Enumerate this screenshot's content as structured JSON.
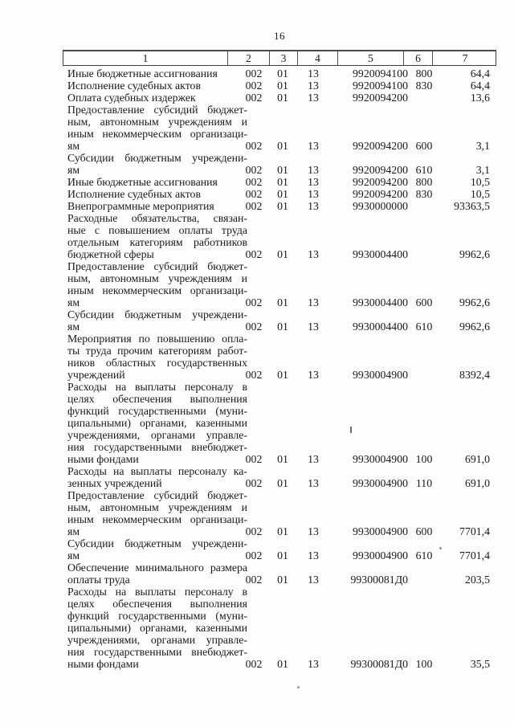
{
  "page": {
    "number": "16"
  },
  "colors": {
    "ink": "#1a1a1a",
    "paper": "#fdfdfc",
    "border": "#3c3c3c"
  },
  "table": {
    "header": [
      "1",
      "2",
      "3",
      "4",
      "5",
      "6",
      "7"
    ],
    "rows": [
      {
        "lines": [
          "Иные бюджетные ассигнования"
        ],
        "grbs": "002",
        "section": "01",
        "subsection": "13",
        "target_article": "9920094100",
        "expense_type": "800",
        "amount": "64,4"
      },
      {
        "lines": [
          "Исполнение судебных актов"
        ],
        "grbs": "002",
        "section": "01",
        "subsection": "13",
        "target_article": "9920094100",
        "expense_type": "830",
        "amount": "64,4"
      },
      {
        "lines": [
          "Оплата судебных издержек"
        ],
        "grbs": "002",
        "section": "01",
        "subsection": "13",
        "target_article": "9920094200",
        "expense_type": "",
        "amount": "13,6"
      },
      {
        "lines": [
          "Предоставление субсидий бюджет-",
          "ным, автономным учреждениям и",
          "иным некоммерческим организаци-",
          "ям"
        ],
        "grbs": "002",
        "section": "01",
        "subsection": "13",
        "target_article": "9920094200",
        "expense_type": "600",
        "amount": "3,1"
      },
      {
        "lines": [
          "Субсидии бюджетным учреждени-",
          "ям"
        ],
        "grbs": "002",
        "section": "01",
        "subsection": "13",
        "target_article": "9920094200",
        "expense_type": "610",
        "amount": "3,1"
      },
      {
        "lines": [
          "Иные бюджетные ассигнования"
        ],
        "grbs": "002",
        "section": "01",
        "subsection": "13",
        "target_article": "9920094200",
        "expense_type": "800",
        "amount": "10,5"
      },
      {
        "lines": [
          "Исполнение судебных актов"
        ],
        "grbs": "002",
        "section": "01",
        "subsection": "13",
        "target_article": "9920094200",
        "expense_type": "830",
        "amount": "10,5"
      },
      {
        "lines": [
          "Внепрограммные мероприятия"
        ],
        "grbs": "002",
        "section": "01",
        "subsection": "13",
        "target_article": "9930000000",
        "expense_type": "",
        "amount": "93363,5"
      },
      {
        "lines": [
          "Расходные обязательства, связан-",
          "ные с повышением оплаты труда",
          "отдельным категориям работников",
          "бюджетной сферы"
        ],
        "grbs": "002",
        "section": "01",
        "subsection": "13",
        "target_article": "9930004400",
        "expense_type": "",
        "amount": "9962,6"
      },
      {
        "lines": [
          "Предоставление субсидий бюджет-",
          "ным, автономным учреждениям и",
          "иным некоммерческим организаци-",
          "ям"
        ],
        "grbs": "002",
        "section": "01",
        "subsection": "13",
        "target_article": "9930004400",
        "expense_type": "600",
        "amount": "9962,6"
      },
      {
        "lines": [
          "Субсидии бюджетным учреждени-",
          "ям"
        ],
        "grbs": "002",
        "section": "01",
        "subsection": "13",
        "target_article": "9930004400",
        "expense_type": "610",
        "amount": "9962,6"
      },
      {
        "lines": [
          "Мероприятия по повышению опла-",
          "ты труда прочим категориям работ-",
          "ников областных государственных",
          "учреждений"
        ],
        "grbs": "002",
        "section": "01",
        "subsection": "13",
        "target_article": "9930004900",
        "expense_type": "",
        "amount": "8392,4"
      },
      {
        "lines": [
          "Расходы на выплаты персоналу в",
          "целях обеспечения выполнения",
          "функций государственными (муни-",
          "ципальными) органами, казенными",
          "учреждениями, органами управле-",
          "ния государственными внебюджет-",
          "ными фондами"
        ],
        "grbs": "002",
        "section": "01",
        "subsection": "13",
        "target_article": "9930004900",
        "expense_type": "100",
        "amount": "691,0"
      },
      {
        "lines": [
          "Расходы на выплаты персоналу ка-",
          "зенных учреждений"
        ],
        "grbs": "002",
        "section": "01",
        "subsection": "13",
        "target_article": "9930004900",
        "expense_type": "110",
        "amount": "691,0"
      },
      {
        "lines": [
          "Предоставление субсидий бюджет-",
          "ным, автономным учреждениям и",
          "иным некоммерческим организаци-",
          "ям"
        ],
        "grbs": "002",
        "section": "01",
        "subsection": "13",
        "target_article": "9930004900",
        "expense_type": "600",
        "amount": "7701,4"
      },
      {
        "lines": [
          "Субсидии бюджетным учреждени-",
          "ям"
        ],
        "grbs": "002",
        "section": "01",
        "subsection": "13",
        "target_article": "9930004900",
        "expense_type": "610",
        "amount": "7701,4"
      },
      {
        "lines": [
          "Обеспечение минимального размера",
          "оплаты труда"
        ],
        "grbs": "002",
        "section": "01",
        "subsection": "13",
        "target_article": "99300081Д0",
        "expense_type": "",
        "amount": "203,5"
      },
      {
        "lines": [
          "Расходы на выплаты персоналу в",
          "целях обеспечения выполнения",
          "функций государственными (муни-",
          "ципальными) органами, казенными",
          "учреждениями, органами управле-",
          "ния государственными внебюджет-",
          "ными фондами"
        ],
        "grbs": "002",
        "section": "01",
        "subsection": "13",
        "target_article": "99300081Д0",
        "expense_type": "100",
        "amount": "35,5"
      }
    ]
  }
}
